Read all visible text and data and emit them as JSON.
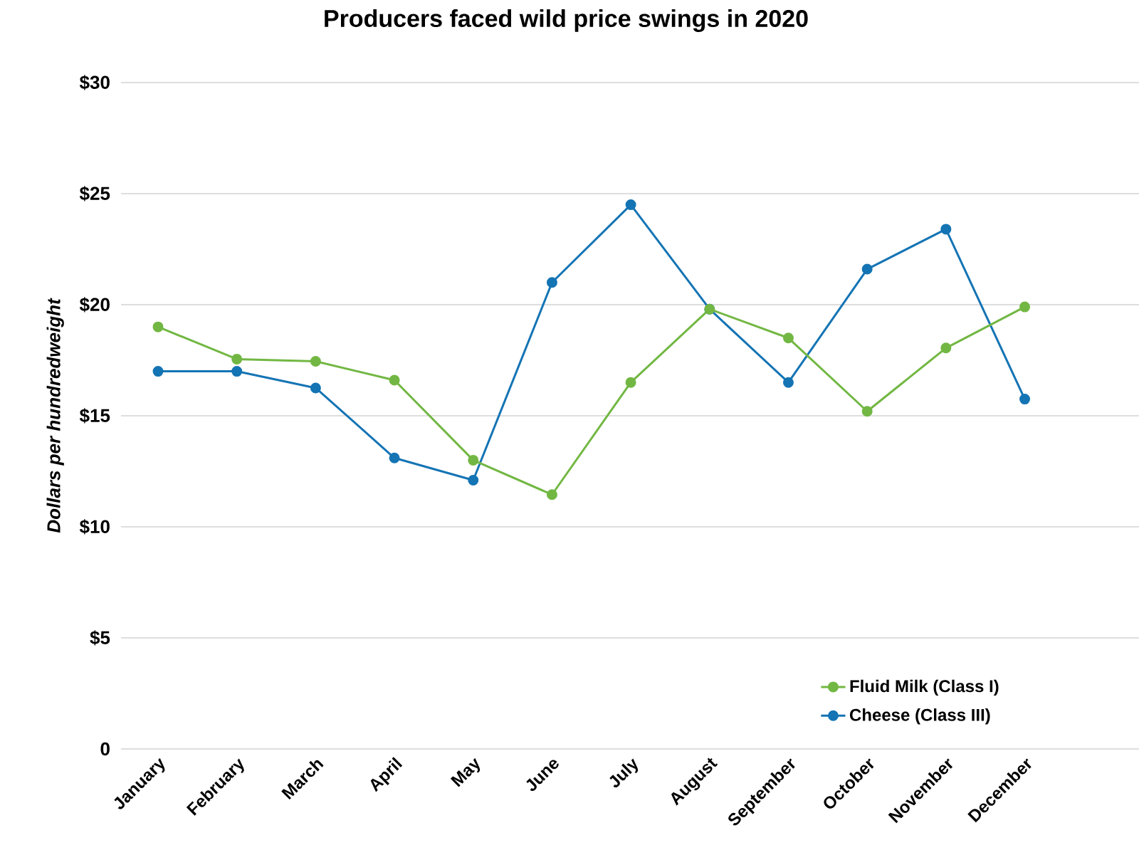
{
  "chart_data": {
    "type": "line",
    "title": "Producers faced wild price swings in 2020",
    "ylabel": "Dollars per hundredweight",
    "categories": [
      "January",
      "February",
      "March",
      "April",
      "May",
      "June",
      "July",
      "August",
      "September",
      "October",
      "November",
      "December"
    ],
    "series": [
      {
        "name": "Fluid Milk (Class I)",
        "color": "#72b743",
        "values": [
          19.0,
          17.55,
          17.45,
          16.6,
          13.0,
          11.45,
          16.5,
          19.8,
          18.5,
          15.2,
          18.05,
          19.9
        ]
      },
      {
        "name": "Cheese (Class III)",
        "color": "#1474b4",
        "values": [
          17.0,
          17.0,
          16.25,
          13.1,
          12.1,
          21.0,
          24.5,
          19.8,
          16.5,
          21.6,
          23.4,
          15.75
        ]
      }
    ],
    "ylim": [
      0,
      30
    ],
    "yticks": [
      0,
      {
        "value": 5,
        "label": "$5"
      },
      {
        "value": 10,
        "label": "$10"
      },
      {
        "value": 15,
        "label": "$15"
      },
      {
        "value": 20,
        "label": "$20"
      },
      {
        "value": 25,
        "label": "$25"
      },
      {
        "value": 30,
        "label": "$30"
      }
    ],
    "grid": "y",
    "legend": "bottom right",
    "marker": "circle",
    "line_style": "solid"
  }
}
